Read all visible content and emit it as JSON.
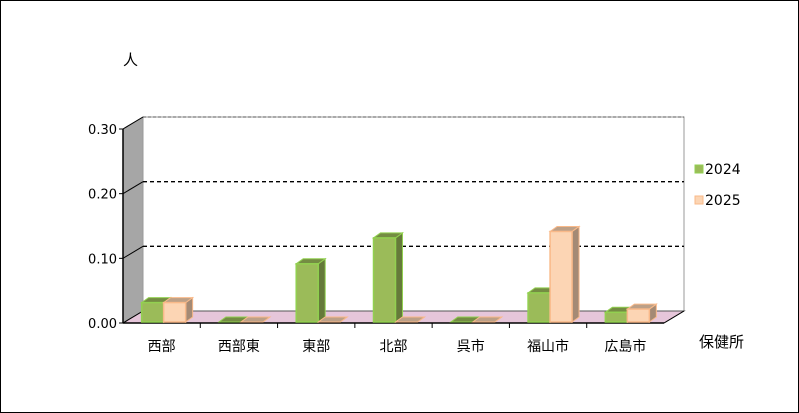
{
  "chart_data": {
    "type": "bar",
    "style": "3d-clustered",
    "ylabel": "人",
    "xlabel": "保健所",
    "categories": [
      "西部",
      "西部東",
      "東部",
      "北部",
      "呉市",
      "福山市",
      "広島市"
    ],
    "series": [
      {
        "name": "2024",
        "color": "#9BBB59",
        "values": [
          0.03,
          0.0,
          0.09,
          0.13,
          0.0,
          0.045,
          0.015
        ]
      },
      {
        "name": "2025",
        "color": "#FCD5B4",
        "values": [
          0.03,
          0.0,
          0.0,
          0.0,
          0.0,
          0.14,
          0.02
        ]
      }
    ],
    "ylim": [
      0,
      0.3
    ],
    "yticks": [
      "0.00",
      "0.10",
      "0.20",
      "0.30"
    ],
    "grid": true,
    "floor_color": "#E6C6DA",
    "legend": "right"
  }
}
